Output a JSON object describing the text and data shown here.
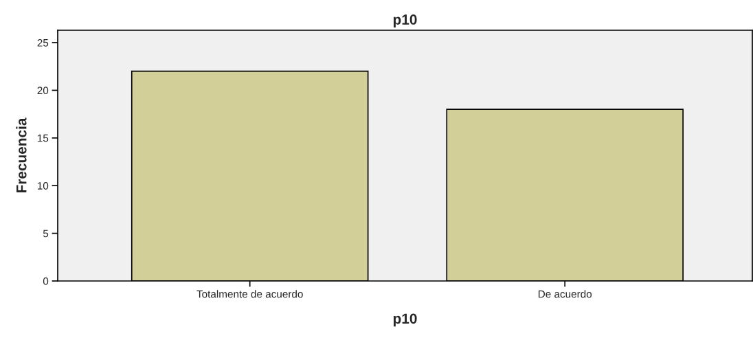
{
  "chart_data": {
    "type": "bar",
    "title": "p10",
    "xlabel": "p10",
    "ylabel": "Frecuencia",
    "categories": [
      "Totalmente de acuerdo",
      "De acuerdo"
    ],
    "values": [
      22,
      18
    ],
    "color": "#d3cf99",
    "ylim": [
      0,
      26.3
    ],
    "yticks": [
      0,
      5,
      10,
      15,
      20,
      25
    ],
    "grid": false
  }
}
